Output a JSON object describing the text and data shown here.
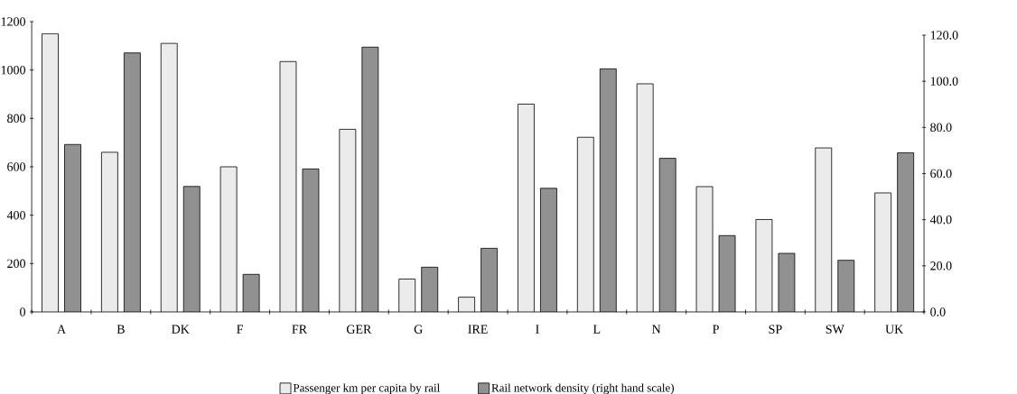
{
  "chart_data": {
    "type": "bar",
    "categories": [
      "A",
      "B",
      "DK",
      "F",
      "FR",
      "GER",
      "G",
      "IRE",
      "I",
      "L",
      "N",
      "P",
      "SP",
      "SW",
      "UK"
    ],
    "series": [
      {
        "name": "Passenger km per capita by rail",
        "color": "#ebebeb",
        "values": [
          1150,
          660,
          1110,
          600,
          1035,
          755,
          136,
          61,
          859,
          722,
          943,
          518,
          382,
          678,
          492
        ]
      },
      {
        "name": "Rail network density (right hand scale)",
        "color": "#919191",
        "axis": "y2",
        "values": [
          72.6,
          112.3,
          54.4,
          16.3,
          62.0,
          114.8,
          19.4,
          27.6,
          53.6,
          105.4,
          66.6,
          33.1,
          25.4,
          22.4,
          69.0
        ]
      }
    ],
    "ylim": [
      0,
      1200
    ],
    "yticks": [
      0,
      200,
      400,
      600,
      800,
      1000,
      1200
    ],
    "y2lim": [
      0,
      120
    ],
    "y2ticks": [
      {
        "value": 0,
        "label": "0.0"
      },
      {
        "value": 20,
        "label": "20.0"
      },
      {
        "value": 40,
        "label": "40.0"
      },
      {
        "value": 60,
        "label": "60.0"
      },
      {
        "value": 80,
        "label": "80.0"
      },
      {
        "value": 100,
        "label": "100.0"
      },
      {
        "value": 120,
        "label": "120.0"
      }
    ],
    "legend": "bottom",
    "grid": false
  }
}
